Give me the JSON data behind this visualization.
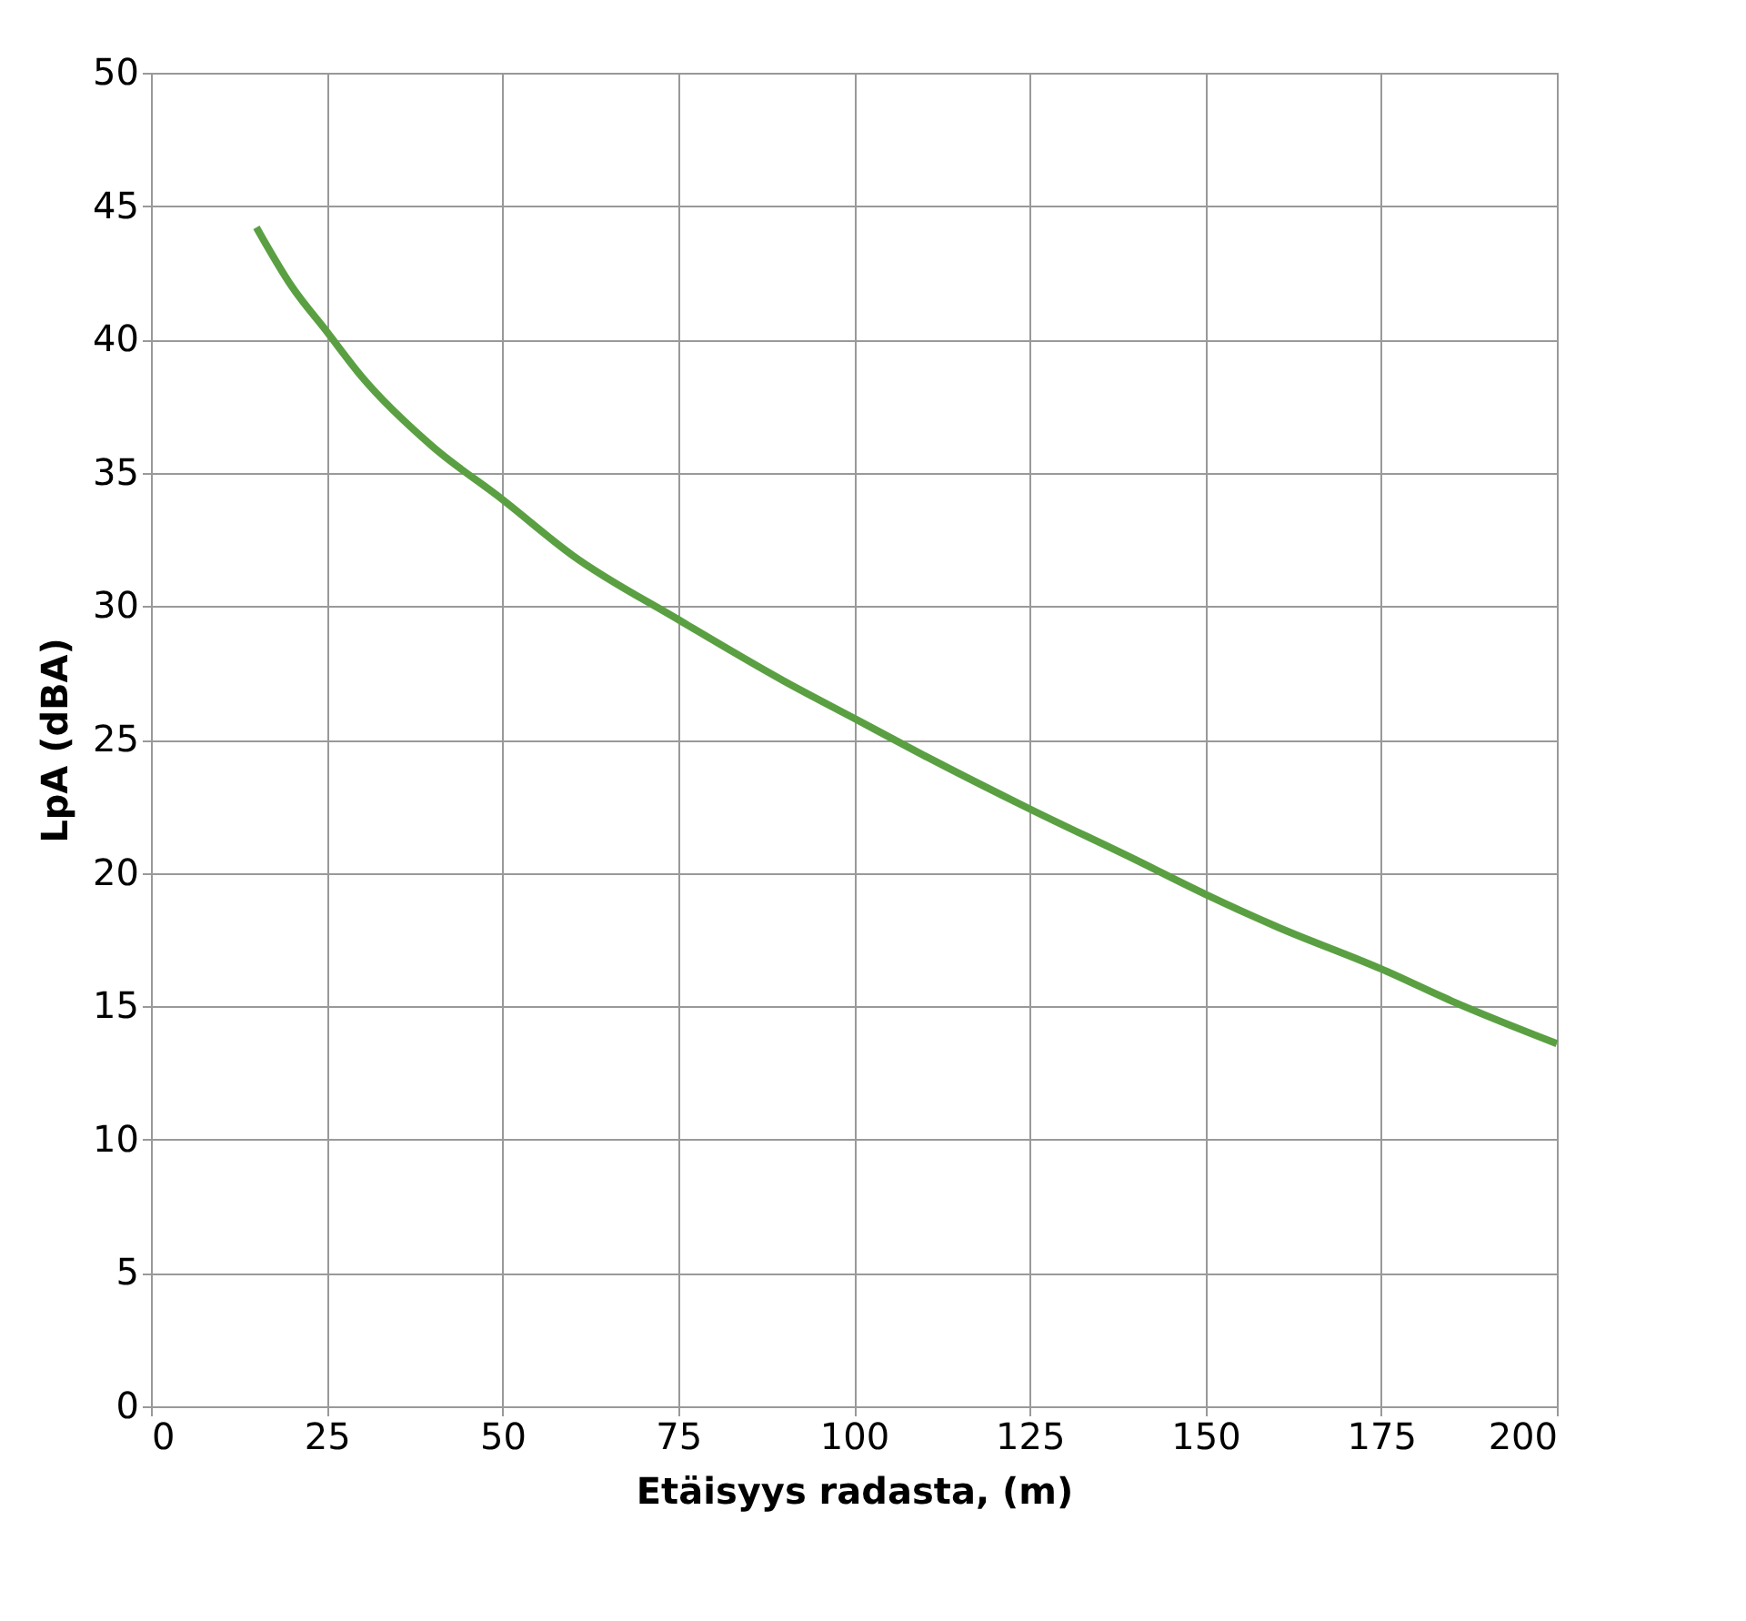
{
  "chart_data": {
    "type": "line",
    "xlabel": "Etäisyys radasta, (m)",
    "ylabel": "LpA (dBA)",
    "x": [
      15,
      20,
      25,
      30,
      40,
      50,
      60,
      75,
      90,
      100,
      110,
      125,
      140,
      150,
      160,
      175,
      185,
      200
    ],
    "series": [
      {
        "color": "#5aa042",
        "values": [
          44.2,
          42.0,
          40.3,
          38.6,
          36.0,
          34.0,
          31.9,
          29.5,
          27.2,
          25.8,
          24.4,
          22.4,
          20.5,
          19.2,
          18.0,
          16.4,
          15.2,
          13.6
        ]
      }
    ],
    "xlim": [
      0,
      200
    ],
    "xticks": [
      0,
      25,
      50,
      75,
      100,
      125,
      150,
      175,
      200
    ],
    "ylim": [
      0,
      50
    ],
    "yticks": [
      0,
      5,
      10,
      15,
      20,
      25,
      30,
      35,
      40,
      45,
      50
    ],
    "grid": true,
    "legend": false,
    "marker": "none",
    "line_style": "solid"
  }
}
